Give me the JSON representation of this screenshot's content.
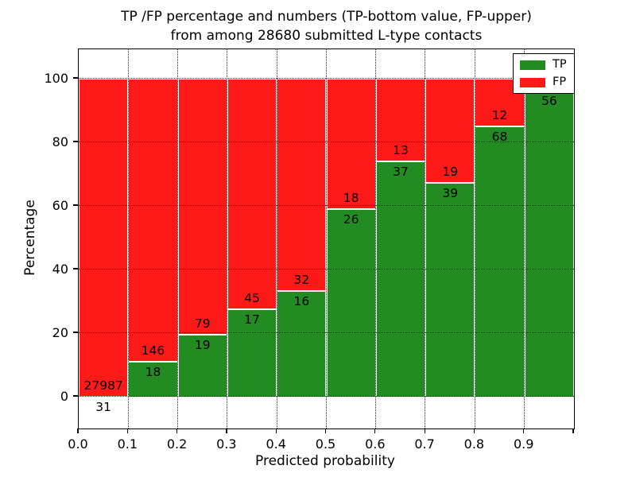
{
  "chart_data": {
    "type": "bar",
    "stacked": true,
    "title_line1": "TP /FP percentage and numbers (TP-bottom value, FP-upper)",
    "title_line2": "from among 28680 submitted L-type contacts",
    "xlabel": "Predicted probability",
    "ylabel": "Percentage",
    "xlim": [
      0.0,
      1.0
    ],
    "ylim": [
      -10,
      110
    ],
    "x_tick_labels": [
      "0.0",
      "0.1",
      "0.2",
      "0.3",
      "0.4",
      "0.5",
      "0.6",
      "0.7",
      "0.8",
      "0.9"
    ],
    "y_ticks": [
      0,
      20,
      40,
      60,
      80,
      100
    ],
    "grid": "dotted black, drawn above bars",
    "legend_position": "upper right",
    "series": [
      {
        "name": "TP",
        "color": "#228b22"
      },
      {
        "name": "FP",
        "color": "#ff1a1a"
      }
    ],
    "bins": [
      {
        "range": "0.0-0.1",
        "tp": 31,
        "fp": 27987,
        "tp_pct": 0.11
      },
      {
        "range": "0.1-0.2",
        "tp": 18,
        "fp": 146,
        "tp_pct": 10.98
      },
      {
        "range": "0.2-0.3",
        "tp": 19,
        "fp": 79,
        "tp_pct": 19.39
      },
      {
        "range": "0.3-0.4",
        "tp": 17,
        "fp": 45,
        "tp_pct": 27.42
      },
      {
        "range": "0.4-0.5",
        "tp": 16,
        "fp": 32,
        "tp_pct": 33.33
      },
      {
        "range": "0.5-0.6",
        "tp": 26,
        "fp": 18,
        "tp_pct": 59.09
      },
      {
        "range": "0.6-0.7",
        "tp": 37,
        "fp": 13,
        "tp_pct": 74.0
      },
      {
        "range": "0.7-0.8",
        "tp": 39,
        "fp": 19,
        "tp_pct": 67.24
      },
      {
        "range": "0.8-0.9",
        "tp": 68,
        "fp": 12,
        "tp_pct": 85.0
      },
      {
        "range": "0.9-1.0",
        "tp": 56,
        "fp": null,
        "tp_pct": 96.3
      }
    ]
  },
  "colors": {
    "tp": "#228b22",
    "fp": "#ff1a1a",
    "grid": "#000000",
    "background": "#ffffff"
  },
  "legend": {
    "items": [
      {
        "key": "tp",
        "label": "TP"
      },
      {
        "key": "fp",
        "label": "FP"
      }
    ]
  }
}
